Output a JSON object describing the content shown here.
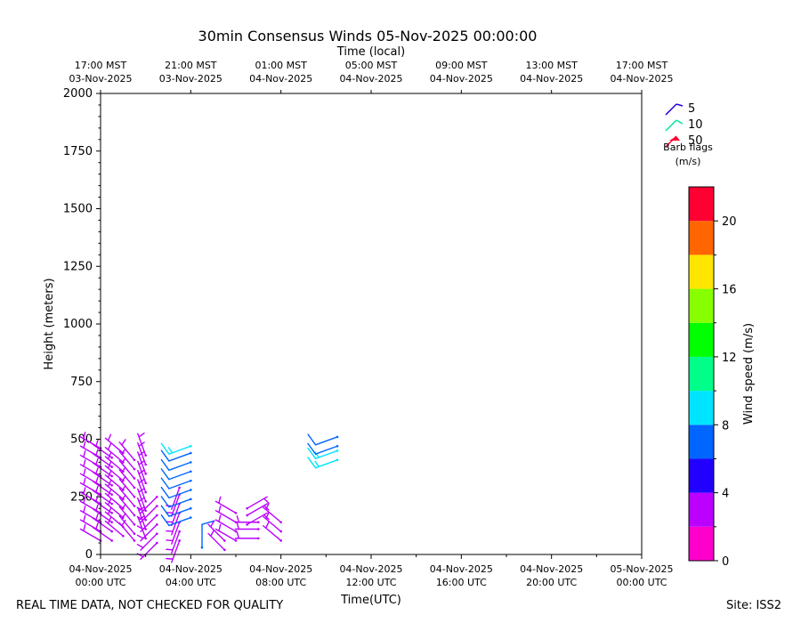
{
  "chart_data": {
    "type": "wind_barb",
    "title": "30min Consensus Winds 05-Nov-2025 00:00:00",
    "top_axis_label": "Time (local)",
    "top_ticks": [
      {
        "l1": "17:00 MST",
        "l2": "03-Nov-2025"
      },
      {
        "l1": "21:00 MST",
        "l2": "03-Nov-2025"
      },
      {
        "l1": "01:00 MST",
        "l2": "04-Nov-2025"
      },
      {
        "l1": "05:00 MST",
        "l2": "04-Nov-2025"
      },
      {
        "l1": "09:00 MST",
        "l2": "04-Nov-2025"
      },
      {
        "l1": "13:00 MST",
        "l2": "04-Nov-2025"
      },
      {
        "l1": "17:00 MST",
        "l2": "04-Nov-2025"
      }
    ],
    "bottom_ticks": [
      {
        "l1": "04-Nov-2025",
        "l2": "00:00 UTC"
      },
      {
        "l1": "04-Nov-2025",
        "l2": "04:00 UTC"
      },
      {
        "l1": "04-Nov-2025",
        "l2": "08:00 UTC"
      },
      {
        "l1": "04-Nov-2025",
        "l2": "12:00 UTC"
      },
      {
        "l1": "04-Nov-2025",
        "l2": "16:00 UTC"
      },
      {
        "l1": "04-Nov-2025",
        "l2": "20:00 UTC"
      },
      {
        "l1": "05-Nov-2025",
        "l2": "00:00 UTC"
      }
    ],
    "xlabel": "Time(UTC)",
    "ylabel": "Height (meters)",
    "xlim_hours": [
      0,
      24
    ],
    "ylim": [
      0,
      2000
    ],
    "y_ticks": [
      0,
      250,
      500,
      750,
      1000,
      1250,
      1500,
      1750,
      2000
    ],
    "legend": {
      "title_line1": "Barb flags",
      "title_line2": "(m/s)",
      "entries": [
        {
          "label": "5",
          "color": "#1f00e0"
        },
        {
          "label": "10",
          "color": "#00e6a0"
        },
        {
          "label": "50",
          "color": "#ff0030"
        }
      ]
    },
    "colorbar": {
      "label": "Wind speed (m/s)",
      "min": 0,
      "max": 22,
      "step": 2,
      "tick_labels": [
        "0",
        "4",
        "8",
        "12",
        "16",
        "20"
      ],
      "tick_values": [
        0,
        4,
        8,
        12,
        16,
        20
      ],
      "colors": [
        "#ff00cc",
        "#bb00ff",
        "#2200ff",
        "#0066ff",
        "#00e5ff",
        "#00ff88",
        "#00ff00",
        "#88ff00",
        "#ffe600",
        "#ff6600",
        "#ff0033"
      ]
    },
    "barbs": [
      {
        "t": 0.0,
        "h": [
          60,
          100,
          140,
          180,
          220,
          260,
          300,
          340,
          380,
          420,
          460
        ],
        "speed": 3,
        "dir": 300
      },
      {
        "t": 0.5,
        "h": [
          60,
          100,
          140,
          180,
          220,
          260,
          300,
          340,
          380,
          420
        ],
        "speed": 3,
        "dir": 305
      },
      {
        "t": 1.0,
        "h": [
          80,
          120,
          160,
          200,
          240,
          280,
          320,
          360,
          400,
          440
        ],
        "speed": 2.5,
        "dir": 310
      },
      {
        "t": 1.5,
        "h": [
          60,
          90,
          130,
          170,
          210,
          250,
          290,
          330,
          370,
          410
        ],
        "speed": 3,
        "dir": 320
      },
      {
        "t": 2.0,
        "h": [
          70,
          110,
          150,
          190,
          230,
          270,
          310,
          350,
          390,
          430
        ],
        "speed": 3,
        "dir": 340
      },
      {
        "t": 2.5,
        "h": [
          50,
          90,
          130,
          170,
          210,
          250
        ],
        "speed": 2.5,
        "dir": 225
      },
      {
        "t": 3.5,
        "h": [
          60,
          100,
          140,
          180,
          220,
          260,
          290
        ],
        "speed": 3,
        "dir": 200
      },
      {
        "t": 4.0,
        "h": [
          160,
          200,
          240,
          280,
          320,
          360,
          400,
          440
        ],
        "speed": 6.5,
        "dir": 250
      },
      {
        "t": 4.0,
        "h": [
          470
        ],
        "speed": 8.5,
        "dir": 250
      },
      {
        "t": 4.5,
        "h": [
          30
        ],
        "speed": 6.5,
        "dir": 0
      },
      {
        "t": 5.5,
        "h": [
          20,
          60
        ],
        "speed": 3,
        "dir": 315
      },
      {
        "t": 6.0,
        "h": [
          60,
          100,
          140,
          180
        ],
        "speed": 3,
        "dir": 300
      },
      {
        "t": 6.5,
        "h": [
          130,
          170,
          200
        ],
        "speed": 3,
        "dir": 60
      },
      {
        "t": 7.0,
        "h": [
          70,
          110,
          140
        ],
        "speed": 3,
        "dir": 270
      },
      {
        "t": 8.0,
        "h": [
          60,
          100,
          140
        ],
        "speed": 3,
        "dir": 310
      },
      {
        "t": 10.5,
        "h": [
          410,
          450
        ],
        "speed": 8.5,
        "dir": 250
      },
      {
        "t": 10.5,
        "h": [
          470,
          510
        ],
        "speed": 6.5,
        "dir": 250
      }
    ]
  },
  "footer": {
    "left": "REAL TIME DATA, NOT CHECKED FOR QUALITY",
    "right": "Site: ISS2"
  }
}
